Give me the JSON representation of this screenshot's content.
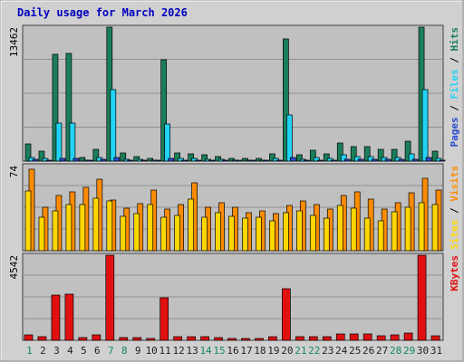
{
  "chart_data": [
    {
      "type": "bar",
      "title": "Daily usage for March 2026",
      "categories": [
        "1",
        "2",
        "3",
        "4",
        "5",
        "6",
        "7",
        "8",
        "9",
        "10",
        "11",
        "12",
        "13",
        "14",
        "15",
        "16",
        "17",
        "18",
        "19",
        "20",
        "21",
        "22",
        "23",
        "24",
        "25",
        "26",
        "27",
        "28",
        "29",
        "30",
        "31"
      ],
      "weekend_days": [
        "1",
        "7",
        "8",
        "14",
        "15",
        "21",
        "22",
        "28",
        "29"
      ],
      "ylabel_max": "13462",
      "ylim": [
        0,
        13462
      ],
      "legend": [
        "Pages",
        "Files",
        "Hits"
      ],
      "series": [
        {
          "name": "Hits",
          "color": "#1a7f5a",
          "values": [
            1700,
            1000,
            10700,
            10800,
            400,
            1200,
            13462,
            800,
            500,
            300,
            10200,
            800,
            700,
            600,
            500,
            300,
            300,
            300,
            700,
            12300,
            600,
            1100,
            700,
            1800,
            1500,
            1500,
            1200,
            1200,
            2000,
            13462,
            1000
          ]
        },
        {
          "name": "Files",
          "color": "#22d3f5",
          "values": [
            400,
            300,
            3800,
            3800,
            100,
            400,
            7200,
            200,
            150,
            100,
            3700,
            300,
            250,
            200,
            150,
            100,
            100,
            100,
            250,
            4600,
            200,
            400,
            300,
            600,
            500,
            500,
            400,
            400,
            700,
            7200,
            300
          ]
        },
        {
          "name": "Pages",
          "color": "#2a4bd0",
          "values": [
            150,
            100,
            300,
            300,
            50,
            150,
            400,
            80,
            60,
            40,
            300,
            90,
            80,
            70,
            60,
            40,
            40,
            40,
            80,
            350,
            70,
            120,
            80,
            200,
            170,
            170,
            140,
            140,
            220,
            400,
            110
          ]
        }
      ]
    },
    {
      "type": "bar",
      "categories": [
        "1",
        "2",
        "3",
        "4",
        "5",
        "6",
        "7",
        "8",
        "9",
        "10",
        "11",
        "12",
        "13",
        "14",
        "15",
        "16",
        "17",
        "18",
        "19",
        "20",
        "21",
        "22",
        "23",
        "24",
        "25",
        "26",
        "27",
        "28",
        "29",
        "30",
        "31"
      ],
      "ylabel_max": "74",
      "ylim": [
        0,
        74
      ],
      "legend": [
        "Sites",
        "Visits"
      ],
      "series": [
        {
          "name": "Visits",
          "color": "#ff8c00",
          "values": [
            71,
            38,
            48,
            51,
            55,
            62,
            44,
            37,
            41,
            53,
            36,
            40,
            59,
            38,
            42,
            38,
            33,
            35,
            32,
            39,
            43,
            40,
            36,
            48,
            51,
            45,
            36,
            42,
            50,
            63,
            53
          ]
        },
        {
          "name": "Sites",
          "color": "#ffd700",
          "values": [
            52,
            29,
            35,
            40,
            40,
            46,
            43,
            30,
            32,
            40,
            29,
            31,
            45,
            29,
            33,
            30,
            28,
            29,
            26,
            33,
            35,
            31,
            28,
            39,
            37,
            28,
            26,
            34,
            38,
            42,
            40
          ]
        }
      ]
    },
    {
      "type": "bar",
      "categories": [
        "1",
        "2",
        "3",
        "4",
        "5",
        "6",
        "7",
        "8",
        "9",
        "10",
        "11",
        "12",
        "13",
        "14",
        "15",
        "16",
        "17",
        "18",
        "19",
        "20",
        "21",
        "22",
        "23",
        "24",
        "25",
        "26",
        "27",
        "28",
        "29",
        "30",
        "31"
      ],
      "ylabel_max": "4542",
      "ylim": [
        0,
        4542
      ],
      "legend": [
        "KBytes"
      ],
      "series": [
        {
          "name": "KBytes",
          "color": "#e01010",
          "values": [
            310,
            200,
            2400,
            2450,
            150,
            290,
            4542,
            150,
            140,
            100,
            2270,
            200,
            200,
            190,
            150,
            90,
            90,
            90,
            200,
            2760,
            200,
            200,
            210,
            360,
            360,
            350,
            260,
            290,
            370,
            4542,
            230
          ]
        }
      ]
    }
  ],
  "colors": {
    "frame_bg": "#d0d0d0",
    "plot_bg": "#c0c0c0",
    "title": "#0000c0",
    "weekend_label": "#128a5a",
    "weekday_label": "#222222"
  }
}
